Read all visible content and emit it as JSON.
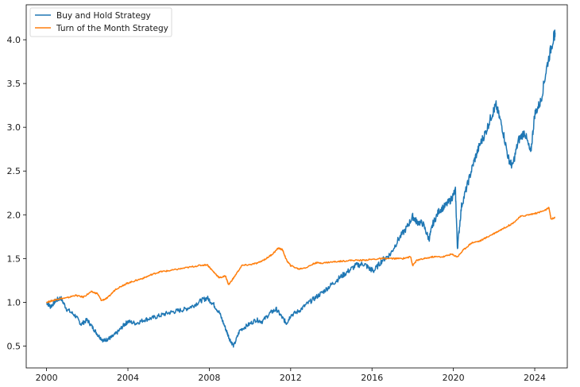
{
  "chart_data": {
    "type": "line",
    "title": "",
    "xlabel": "",
    "ylabel": "",
    "xlim": [
      1999.0,
      2025.6
    ],
    "ylim": [
      0.25,
      4.4
    ],
    "grid": false,
    "legend_position": "top-left",
    "x_ticks": [
      2000,
      2004,
      2008,
      2012,
      2016,
      2020,
      2024
    ],
    "x_tick_labels": [
      "2000",
      "2004",
      "2008",
      "2012",
      "2016",
      "2020",
      "2024"
    ],
    "y_ticks": [
      0.5,
      1.0,
      1.5,
      2.0,
      2.5,
      3.0,
      3.5,
      4.0
    ],
    "y_tick_labels": [
      "0.5",
      "1.0",
      "1.5",
      "2.0",
      "2.5",
      "3.0",
      "3.5",
      "4.0"
    ],
    "series": [
      {
        "name": "Buy and Hold Strategy",
        "color": "#1f77b4",
        "x": [
          2000.0,
          2000.2,
          2000.45,
          2000.7,
          2001.0,
          2001.4,
          2001.7,
          2002.0,
          2002.3,
          2002.55,
          2002.8,
          2003.0,
          2003.2,
          2003.5,
          2003.8,
          2004.0,
          2004.4,
          2004.8,
          2005.2,
          2005.6,
          2006.0,
          2006.4,
          2006.8,
          2007.2,
          2007.6,
          2007.9,
          2008.2,
          2008.5,
          2008.8,
          2009.0,
          2009.2,
          2009.5,
          2009.9,
          2010.3,
          2010.6,
          2011.0,
          2011.3,
          2011.6,
          2011.8,
          2012.0,
          2012.4,
          2012.8,
          2013.2,
          2013.6,
          2014.0,
          2014.4,
          2014.8,
          2015.2,
          2015.6,
          2015.9,
          2016.1,
          2016.5,
          2016.9,
          2017.3,
          2017.7,
          2018.0,
          2018.2,
          2018.5,
          2018.8,
          2019.0,
          2019.3,
          2019.6,
          2019.9,
          2020.1,
          2020.2,
          2020.4,
          2020.7,
          2021.0,
          2021.3,
          2021.6,
          2021.9,
          2022.1,
          2022.4,
          2022.7,
          2022.9,
          2023.2,
          2023.5,
          2023.8,
          2024.0,
          2024.3,
          2024.6,
          2024.9,
          2025.0
        ],
        "values": [
          1.0,
          0.95,
          1.02,
          1.05,
          0.92,
          0.85,
          0.75,
          0.8,
          0.7,
          0.62,
          0.56,
          0.58,
          0.6,
          0.66,
          0.74,
          0.78,
          0.76,
          0.8,
          0.82,
          0.85,
          0.88,
          0.9,
          0.92,
          0.96,
          1.02,
          1.05,
          0.98,
          0.88,
          0.7,
          0.58,
          0.5,
          0.68,
          0.74,
          0.8,
          0.78,
          0.88,
          0.92,
          0.82,
          0.76,
          0.85,
          0.9,
          0.98,
          1.05,
          1.12,
          1.2,
          1.28,
          1.35,
          1.42,
          1.44,
          1.38,
          1.36,
          1.48,
          1.55,
          1.72,
          1.85,
          1.98,
          1.92,
          1.9,
          1.72,
          1.9,
          2.05,
          2.1,
          2.18,
          2.28,
          1.62,
          2.1,
          2.35,
          2.6,
          2.8,
          2.95,
          3.15,
          3.25,
          3.0,
          2.65,
          2.55,
          2.85,
          2.95,
          2.7,
          3.15,
          3.3,
          3.7,
          4.0,
          4.08
        ]
      },
      {
        "name": "Turn of the Month Strategy",
        "color": "#ff7f0e",
        "x": [
          2000.0,
          2000.3,
          2000.6,
          2001.0,
          2001.4,
          2001.8,
          2002.2,
          2002.5,
          2002.7,
          2003.0,
          2003.4,
          2003.8,
          2004.0,
          2004.4,
          2004.8,
          2005.2,
          2005.6,
          2006.0,
          2006.5,
          2007.0,
          2007.5,
          2007.9,
          2008.2,
          2008.5,
          2008.8,
          2008.95,
          2009.2,
          2009.6,
          2010.0,
          2010.4,
          2010.8,
          2011.1,
          2011.4,
          2011.6,
          2011.8,
          2012.0,
          2012.4,
          2012.8,
          2013.2,
          2013.6,
          2014.0,
          2014.5,
          2015.0,
          2015.5,
          2016.0,
          2016.5,
          2017.0,
          2017.5,
          2017.9,
          2018.0,
          2018.2,
          2018.6,
          2019.0,
          2019.5,
          2019.9,
          2020.2,
          2020.5,
          2020.9,
          2021.3,
          2021.7,
          2022.1,
          2022.5,
          2022.9,
          2023.3,
          2023.7,
          2024.1,
          2024.5,
          2024.7,
          2024.8,
          2025.0
        ],
        "values": [
          1.0,
          1.02,
          1.04,
          1.05,
          1.08,
          1.06,
          1.12,
          1.1,
          1.02,
          1.05,
          1.15,
          1.2,
          1.22,
          1.25,
          1.28,
          1.32,
          1.35,
          1.36,
          1.38,
          1.4,
          1.42,
          1.43,
          1.35,
          1.28,
          1.3,
          1.2,
          1.28,
          1.42,
          1.43,
          1.45,
          1.5,
          1.55,
          1.62,
          1.6,
          1.48,
          1.42,
          1.38,
          1.4,
          1.45,
          1.45,
          1.46,
          1.47,
          1.48,
          1.48,
          1.49,
          1.5,
          1.5,
          1.5,
          1.52,
          1.42,
          1.48,
          1.5,
          1.52,
          1.52,
          1.55,
          1.52,
          1.6,
          1.68,
          1.7,
          1.75,
          1.8,
          1.85,
          1.9,
          1.98,
          2.0,
          2.02,
          2.05,
          2.08,
          1.95,
          1.97
        ]
      }
    ]
  }
}
